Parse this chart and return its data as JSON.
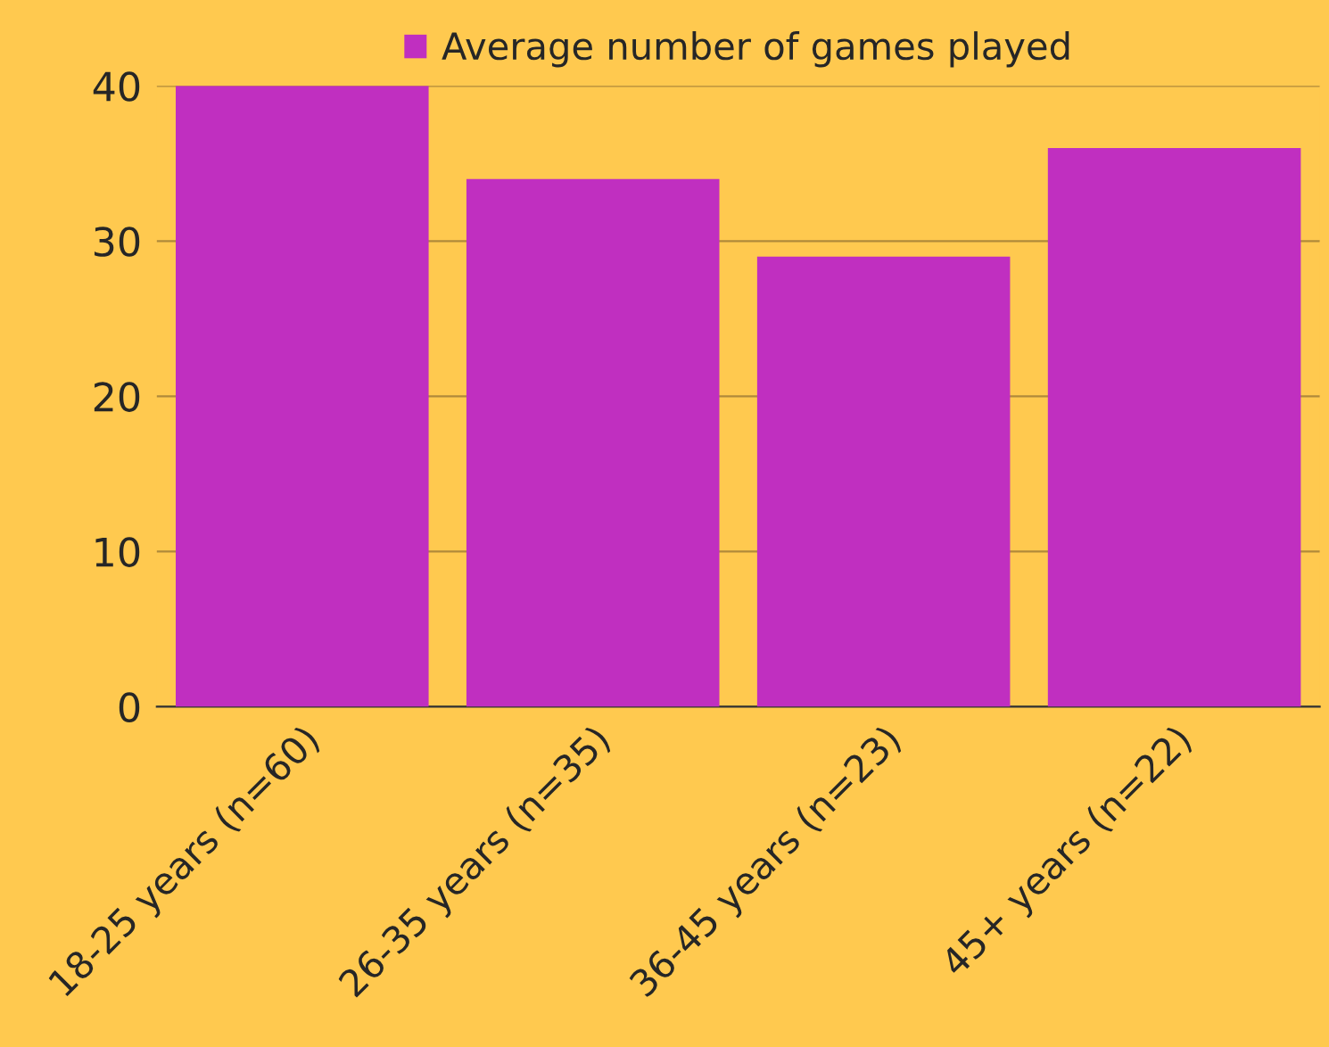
{
  "chart_data": {
    "type": "bar",
    "categories": [
      "18-25 years (n=60)",
      "26-35 years (n=35)",
      "36-45 years (n=23)",
      "45+ years (n=22)"
    ],
    "series": [
      {
        "name": "Average number of games played",
        "color": "#c02fc0",
        "values": [
          40,
          34,
          29,
          36
        ]
      }
    ],
    "ylim": [
      0,
      40
    ],
    "yticks": [
      0,
      10,
      20,
      30,
      40
    ],
    "grid": "y",
    "legend": "top"
  }
}
